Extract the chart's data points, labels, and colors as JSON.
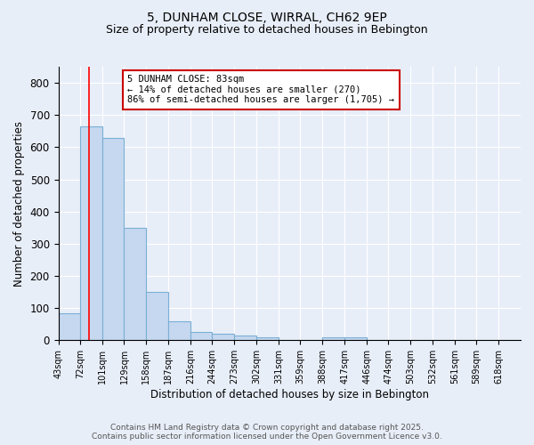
{
  "title1": "5, DUNHAM CLOSE, WIRRAL, CH62 9EP",
  "title2": "Size of property relative to detached houses in Bebington",
  "xlabel": "Distribution of detached houses by size in Bebington",
  "ylabel": "Number of detached properties",
  "bin_labels": [
    "43sqm",
    "72sqm",
    "101sqm",
    "129sqm",
    "158sqm",
    "187sqm",
    "216sqm",
    "244sqm",
    "273sqm",
    "302sqm",
    "331sqm",
    "359sqm",
    "388sqm",
    "417sqm",
    "446sqm",
    "474sqm",
    "503sqm",
    "532sqm",
    "561sqm",
    "589sqm",
    "618sqm"
  ],
  "bin_edges": [
    43,
    72,
    101,
    129,
    158,
    187,
    216,
    244,
    273,
    302,
    331,
    359,
    388,
    417,
    446,
    474,
    503,
    532,
    561,
    589,
    618,
    647
  ],
  "bar_heights": [
    85,
    665,
    630,
    350,
    150,
    60,
    25,
    20,
    15,
    10,
    0,
    0,
    8,
    8,
    0,
    0,
    0,
    0,
    0,
    0,
    0
  ],
  "bar_color": "#c5d8f0",
  "bar_edge_color": "#7aafd4",
  "red_line_x": 83,
  "ylim": [
    0,
    850
  ],
  "yticks": [
    0,
    100,
    200,
    300,
    400,
    500,
    600,
    700,
    800
  ],
  "annotation_text": "5 DUNHAM CLOSE: 83sqm\n← 14% of detached houses are smaller (270)\n86% of semi-detached houses are larger (1,705) →",
  "annotation_box_color": "#ffffff",
  "annotation_box_edge_color": "#cc0000",
  "footer_line1": "Contains HM Land Registry data © Crown copyright and database right 2025.",
  "footer_line2": "Contains public sector information licensed under the Open Government Licence v3.0.",
  "background_color": "#e8eef8",
  "plot_background_color": "#e8eef8",
  "grid_color": "#ffffff",
  "title_fontsize": 10,
  "subtitle_fontsize": 9,
  "axis_fontsize": 8.5,
  "tick_fontsize": 7,
  "footer_fontsize": 6.5,
  "annot_fontsize": 7.5
}
